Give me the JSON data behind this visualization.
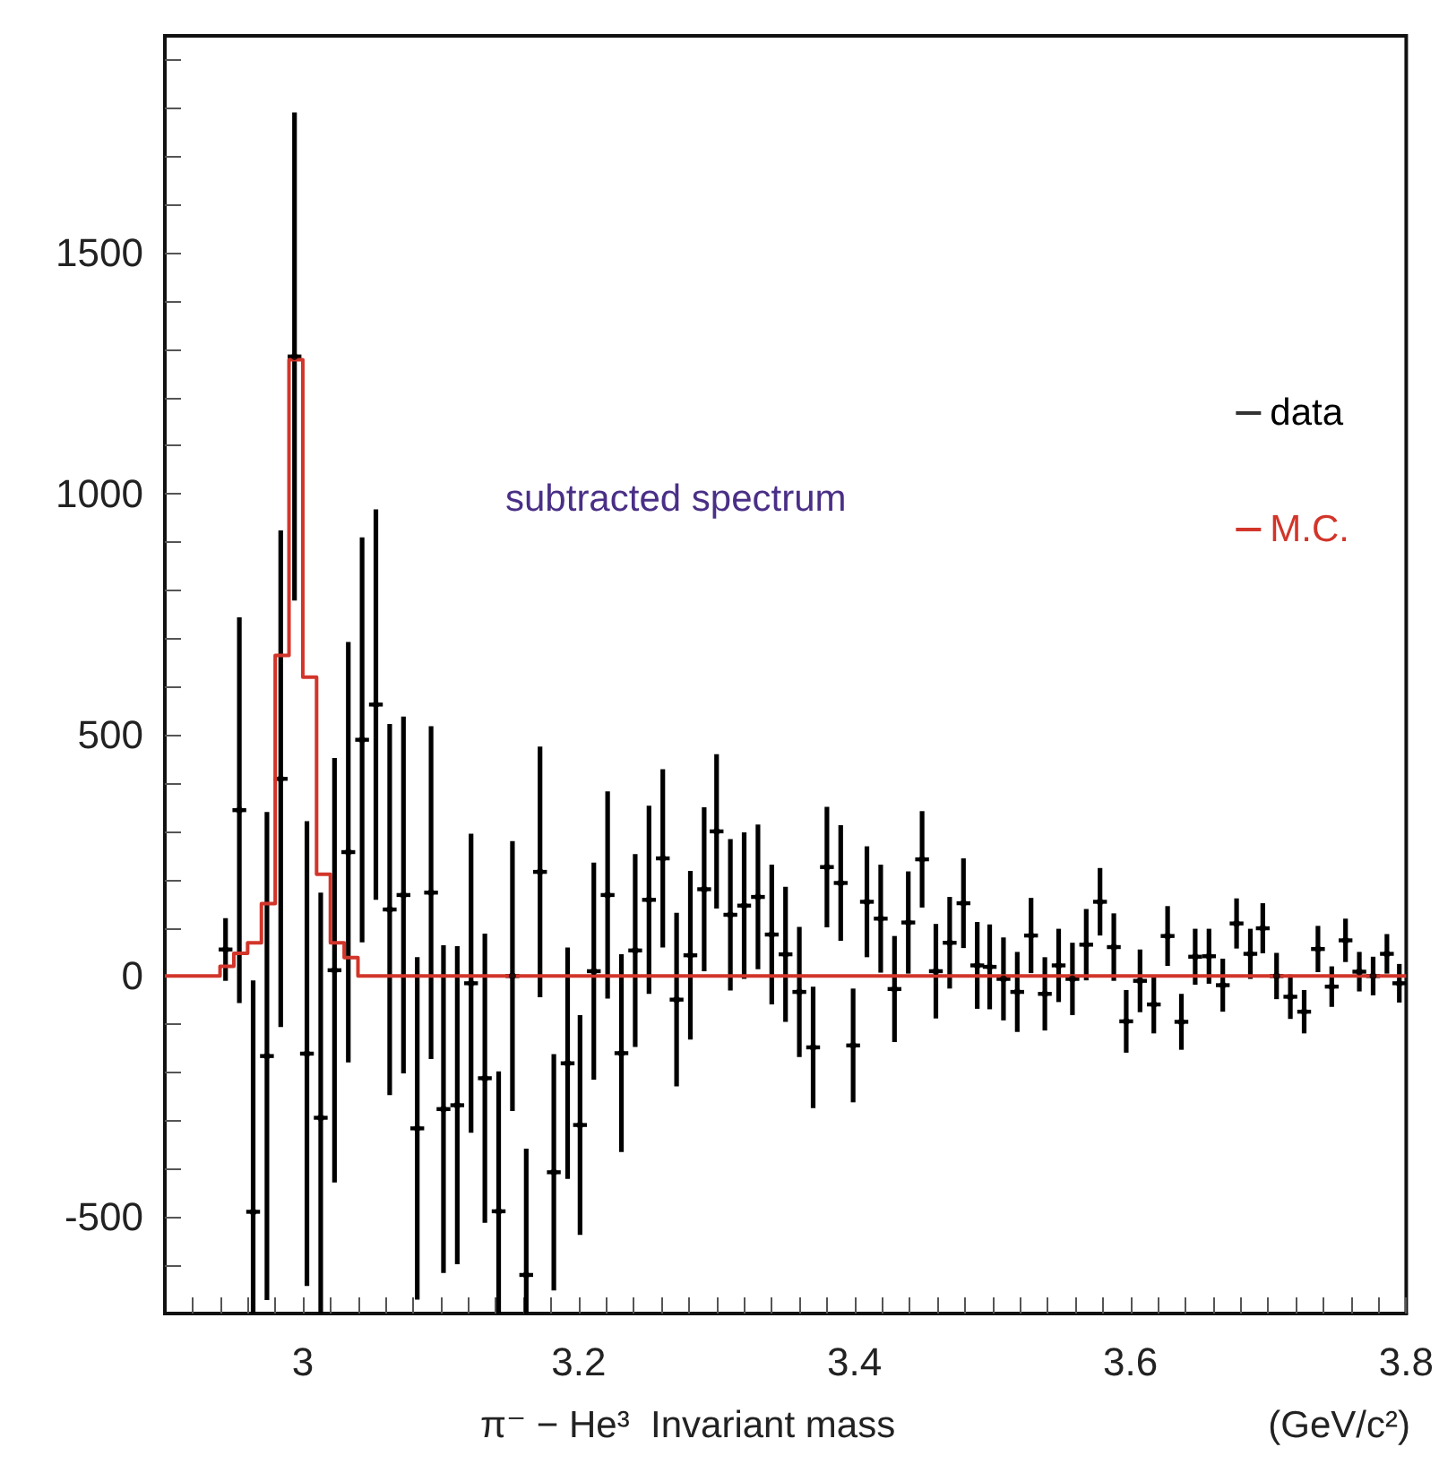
{
  "chart_data": {
    "type": "scatter",
    "xlabel": "π⁻ − He³  Invariant mass",
    "annotations": [
      "subtracted spectrum",
      "(GeV/c²)"
    ],
    "xlim": [
      2.9,
      3.8
    ],
    "xticks": [
      {
        "value": 2.92,
        "label": null
      },
      {
        "value": 2.94,
        "label": null
      },
      {
        "value": 2.96,
        "label": null
      },
      {
        "value": 2.98,
        "label": null
      },
      3,
      {
        "value": 3.02,
        "label": null
      },
      {
        "value": 3.04,
        "label": null
      },
      {
        "value": 3.06,
        "label": null
      },
      {
        "value": 3.08,
        "label": null
      },
      {
        "value": 3.1,
        "label": null
      },
      {
        "value": 3.12,
        "label": null
      },
      {
        "value": 3.14,
        "label": null
      },
      {
        "value": 3.16,
        "label": null
      },
      {
        "value": 3.18,
        "label": null
      },
      3.2,
      {
        "value": 3.22,
        "label": null
      },
      {
        "value": 3.24,
        "label": null
      },
      {
        "value": 3.26,
        "label": null
      },
      {
        "value": 3.28,
        "label": null
      },
      {
        "value": 3.3,
        "label": null
      },
      {
        "value": 3.32,
        "label": null
      },
      {
        "value": 3.34,
        "label": null
      },
      {
        "value": 3.36,
        "label": null
      },
      {
        "value": 3.38,
        "label": null
      },
      3.4,
      {
        "value": 3.42,
        "label": null
      },
      {
        "value": 3.44,
        "label": null
      },
      {
        "value": 3.46,
        "label": null
      },
      {
        "value": 3.48,
        "label": null
      },
      {
        "value": 3.5,
        "label": null
      },
      {
        "value": 3.52,
        "label": null
      },
      {
        "value": 3.54,
        "label": null
      },
      {
        "value": 3.56,
        "label": null
      },
      {
        "value": 3.58,
        "label": null
      },
      3.6,
      {
        "value": 3.62,
        "label": null
      },
      {
        "value": 3.64,
        "label": null
      },
      {
        "value": 3.66,
        "label": null
      },
      {
        "value": 3.68,
        "label": null
      },
      {
        "value": 3.7,
        "label": null
      },
      {
        "value": 3.72,
        "label": null
      },
      {
        "value": 3.74,
        "label": null
      },
      {
        "value": 3.76,
        "label": null
      },
      {
        "value": 3.78,
        "label": null
      },
      3.8
    ],
    "ylim": [
      -700,
      1950
    ],
    "yticks": [
      {
        "value": -600,
        "label": null
      },
      -500,
      {
        "value": -400,
        "label": null
      },
      {
        "value": -300,
        "label": null
      },
      {
        "value": -200,
        "label": null
      },
      {
        "value": -100,
        "label": null
      },
      0,
      {
        "value": 100,
        "label": null
      },
      {
        "value": 200,
        "label": null
      },
      {
        "value": 300,
        "label": null
      },
      {
        "value": 400,
        "label": null
      },
      500,
      {
        "value": 600,
        "label": null
      },
      {
        "value": 700,
        "label": null
      },
      {
        "value": 800,
        "label": null
      },
      {
        "value": 900,
        "label": null
      },
      1000,
      {
        "value": 1100,
        "label": null
      },
      {
        "value": 1200,
        "label": null
      },
      {
        "value": 1300,
        "label": null
      },
      {
        "value": 1400,
        "label": null
      },
      1500,
      {
        "value": 1600,
        "label": null
      },
      {
        "value": 1700,
        "label": null
      },
      {
        "value": 1800,
        "label": null
      },
      {
        "value": 1900,
        "label": null
      }
    ],
    "grid": false,
    "legend": "top right",
    "series": [
      {
        "name": "data",
        "color": "#000000",
        "marker": "circle",
        "x": [
          2.944,
          2.954,
          2.964,
          2.974,
          2.984,
          2.994,
          3.003,
          3.013,
          3.023,
          3.033,
          3.043,
          3.053,
          3.063,
          3.073,
          3.083,
          3.093,
          3.102,
          3.112,
          3.122,
          3.132,
          3.142,
          3.152,
          3.162,
          3.172,
          3.182,
          3.192,
          3.201,
          3.211,
          3.221,
          3.231,
          3.241,
          3.251,
          3.261,
          3.271,
          3.281,
          3.291,
          3.3,
          3.31,
          3.32,
          3.33,
          3.34,
          3.35,
          3.36,
          3.37,
          3.38,
          3.39,
          3.399,
          3.409,
          3.419,
          3.429,
          3.439,
          3.449,
          3.459,
          3.469,
          3.479,
          3.489,
          3.498,
          3.508,
          3.518,
          3.528,
          3.538,
          3.548,
          3.558,
          3.568,
          3.578,
          3.588,
          3.597,
          3.607,
          3.617,
          3.627,
          3.637,
          3.647,
          3.657,
          3.667,
          3.677,
          3.687,
          3.696,
          3.706,
          3.716,
          3.726,
          3.736,
          3.746,
          3.756,
          3.766,
          3.776,
          3.786,
          3.795
        ],
        "values": [
          55,
          344,
          -489,
          -166,
          409,
          1285,
          -161,
          -294,
          12,
          257,
          490,
          563,
          138,
          168,
          -316,
          173,
          -276,
          -268,
          -15,
          -212,
          -488,
          0,
          -620,
          216,
          -407,
          -181,
          -309,
          10,
          168,
          -160,
          53,
          158,
          244,
          -49,
          43,
          180,
          300,
          127,
          146,
          164,
          86,
          45,
          -33,
          -148,
          226,
          193,
          -144,
          154,
          119,
          -27,
          111,
          242,
          10,
          69,
          151,
          22,
          19,
          -6,
          -33,
          84,
          -37,
          22,
          -6,
          65,
          154,
          60,
          -94,
          -10,
          -59,
          83,
          -95,
          40,
          41,
          -19,
          109,
          46,
          99,
          0,
          -43,
          -74,
          56,
          -22,
          74,
          9,
          0,
          46,
          -15
        ],
        "errors": [
          [
            -10,
            120
          ],
          [
            -56,
            744
          ],
          [
            -700,
            -9
          ],
          [
            -672,
            340
          ],
          [
            -106,
            924
          ],
          [
            779,
            1791
          ],
          [
            -643,
            321
          ],
          [
            -700,
            173
          ],
          [
            -428,
            452
          ],
          [
            -179,
            693
          ],
          [
            70,
            910
          ],
          [
            158,
            968
          ],
          [
            -247,
            523
          ],
          [
            -202,
            538
          ],
          [
            -671,
            39
          ],
          [
            -172,
            518
          ],
          [
            -616,
            64
          ],
          [
            -598,
            62
          ],
          [
            -325,
            295
          ],
          [
            -512,
            88
          ],
          [
            -700,
            -198
          ],
          [
            -280,
            280
          ],
          [
            -700,
            -358
          ],
          [
            -44,
            476
          ],
          [
            -652,
            -162
          ],
          [
            -421,
            59
          ],
          [
            -537,
            -81
          ],
          [
            -215,
            235
          ],
          [
            -47,
            383
          ],
          [
            -365,
            45
          ],
          [
            -147,
            253
          ],
          [
            -37,
            353
          ],
          [
            59,
            429
          ],
          [
            -229,
            131
          ],
          [
            -132,
            218
          ],
          [
            10,
            350
          ],
          [
            140,
            460
          ],
          [
            -30,
            284
          ],
          [
            -6,
            298
          ],
          [
            14,
            314
          ],
          [
            -59,
            231
          ],
          [
            -95,
            185
          ],
          [
            -168,
            102
          ],
          [
            -274,
            -22
          ],
          [
            101,
            351
          ],
          [
            73,
            313
          ],
          [
            -262,
            -26
          ],
          [
            39,
            269
          ],
          [
            7,
            231
          ],
          [
            -137,
            83
          ],
          [
            5,
            217
          ],
          [
            142,
            342
          ],
          [
            -88,
            108
          ],
          [
            -26,
            164
          ],
          [
            58,
            244
          ],
          [
            -68,
            112
          ],
          [
            -69,
            107
          ],
          [
            -92,
            80
          ],
          [
            -116,
            50
          ],
          [
            6,
            162
          ],
          [
            -113,
            39
          ],
          [
            -54,
            98
          ],
          [
            -81,
            69
          ],
          [
            -9,
            139
          ],
          [
            84,
            224
          ],
          [
            -10,
            130
          ],
          [
            -159,
            -29
          ],
          [
            -75,
            55
          ],
          [
            -119,
            1
          ],
          [
            21,
            145
          ],
          [
            -153,
            -37
          ],
          [
            -18,
            98
          ],
          [
            -16,
            98
          ],
          [
            -74,
            36
          ],
          [
            57,
            161
          ],
          [
            -6,
            98
          ],
          [
            47,
            151
          ],
          [
            -48,
            48
          ],
          [
            -89,
            3
          ],
          [
            -119,
            -29
          ],
          [
            8,
            104
          ],
          [
            -64,
            20
          ],
          [
            29,
            119
          ],
          [
            -32,
            50
          ],
          [
            -40,
            40
          ],
          [
            5,
            87
          ],
          [
            -55,
            25
          ]
        ],
        "xerrors": [
          0.005,
          0.005,
          0.005,
          0.005,
          0.005,
          0.005,
          0.005,
          0.005,
          0.005,
          0.005,
          0.005,
          0.005,
          0.005,
          0.005,
          0.005,
          0.005,
          0.005,
          0.005,
          0.005,
          0.005,
          0.005,
          0.005,
          0.005,
          0.005,
          0.005,
          0.005,
          0.005,
          0.005,
          0.005,
          0.005,
          0.005,
          0.005,
          0.005,
          0.005,
          0.005,
          0.005,
          0.005,
          0.005,
          0.005,
          0.005,
          0.005,
          0.005,
          0.005,
          0.005,
          0.005,
          0.005,
          0.005,
          0.005,
          0.005,
          0.005,
          0.005,
          0.005,
          0.005,
          0.005,
          0.005,
          0.005,
          0.005,
          0.005,
          0.005,
          0.005,
          0.005,
          0.005,
          0.005,
          0.005,
          0.005,
          0.005,
          0.005,
          0.005,
          0.005,
          0.005,
          0.005,
          0.005,
          0.005,
          0.005,
          0.005,
          0.005,
          0.005,
          0.005,
          0.005,
          0.005,
          0.005,
          0.005,
          0.005,
          0.005,
          0.005,
          0.005,
          0.005
        ]
      },
      {
        "name": "M.C.",
        "type": "step",
        "color": "#d2352a",
        "marker": "none",
        "x": [
          2.9,
          2.94,
          2.95,
          2.96,
          2.97,
          2.98,
          2.99,
          3.0,
          3.01,
          3.02,
          3.03,
          3.04,
          3.8
        ],
        "values": [
          0,
          20,
          47,
          69,
          150,
          665,
          1278,
          620,
          211,
          69,
          38,
          0,
          0
        ]
      }
    ]
  }
}
